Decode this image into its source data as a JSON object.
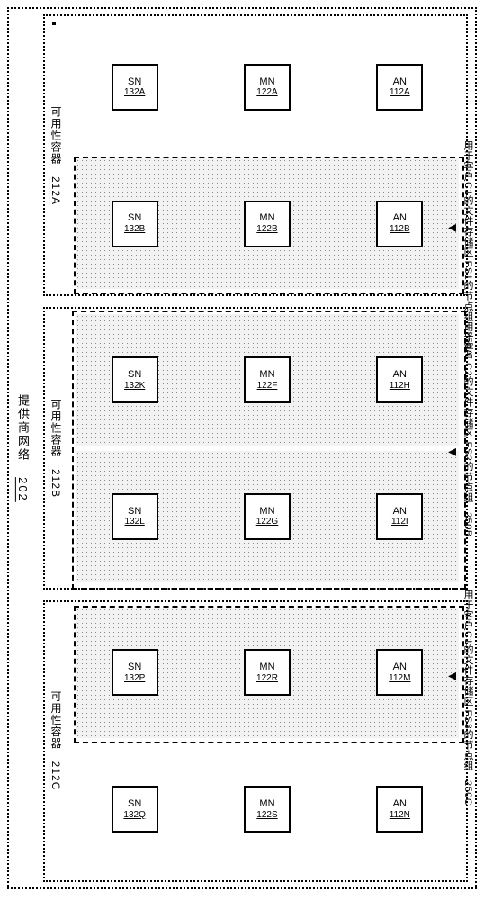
{
  "outer": {
    "label": "提供商网络",
    "id": "202"
  },
  "containers": [
    {
      "key": "c212A",
      "label": "可用性容器",
      "id": "212A",
      "rows": [
        {
          "shaded": false,
          "nodes": [
            {
              "type": "SN",
              "id": "132A"
            },
            {
              "type": "MN",
              "id": "122A"
            },
            {
              "type": "AN",
              "id": "112A"
            }
          ]
        },
        {
          "shaded": true,
          "nodes": [
            {
              "type": "SN",
              "id": "132B"
            },
            {
              "type": "MN",
              "id": "122B"
            },
            {
              "type": "AN",
              "id": "112B"
            }
          ]
        }
      ]
    },
    {
      "key": "c212B",
      "label": "可用性容器",
      "id": "212B",
      "rows": [
        {
          "shaded": true,
          "nodes": [
            {
              "type": "SN",
              "id": "132K"
            },
            {
              "type": "MN",
              "id": "122F"
            },
            {
              "type": "AN",
              "id": "112H"
            }
          ]
        },
        {
          "shaded": true,
          "nodes": [
            {
              "type": "SN",
              "id": "132L"
            },
            {
              "type": "MN",
              "id": "122G"
            },
            {
              "type": "AN",
              "id": "112I"
            }
          ]
        }
      ]
    },
    {
      "key": "c212C",
      "label": "可用性容器",
      "id": "212C",
      "rows": [
        {
          "shaded": true,
          "nodes": [
            {
              "type": "SN",
              "id": "132P"
            },
            {
              "type": "MN",
              "id": "122R"
            },
            {
              "type": "AN",
              "id": "112M"
            }
          ]
        },
        {
          "shaded": false,
          "nodes": [
            {
              "type": "SN",
              "id": "132Q"
            },
            {
              "type": "MN",
              "id": "122S"
            },
            {
              "type": "AN",
              "id": "112N"
            }
          ]
        }
      ]
    }
  ],
  "regions": [
    {
      "key": "250A",
      "caption_prefix": "用于客户C1的文件存储区 FS1的节点组",
      "id": "250A"
    },
    {
      "key": "250B",
      "caption_prefix": "用于客户C2的文件存储区 FS2的节点组",
      "id": "250B"
    },
    {
      "key": "250C",
      "caption_prefix": "用于客户C1的文件存储区 FS3的节点组",
      "id": "250C"
    }
  ],
  "colors": {
    "border": "#000000",
    "dot_bg": "#f2f2f2",
    "dot_fg": "#888888"
  }
}
